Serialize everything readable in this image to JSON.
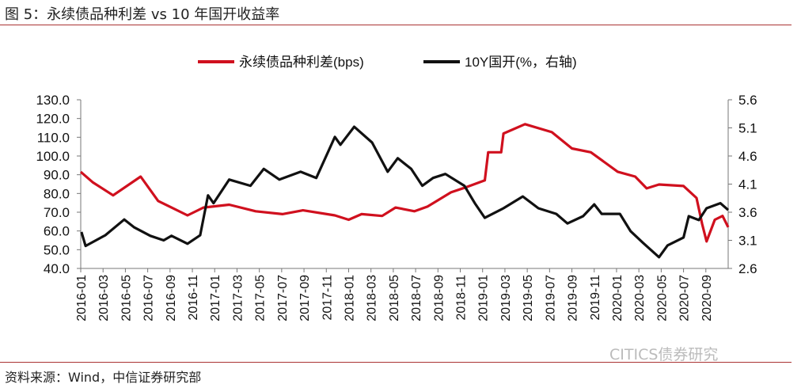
{
  "header": {
    "title": "图 5：永续债品种利差  vs 10 年国开收益率"
  },
  "footer": {
    "source": "资料来源：Wind，中信证券研究部",
    "watermark": "CITICS债券研究"
  },
  "chart_data": {
    "type": "line",
    "title": "图 5：永续债品种利差  vs 10 年国开收益率",
    "legend_position": "top",
    "grid": false,
    "x_range": [
      "2016-01-01",
      "2020-11-01"
    ],
    "x_ticks": [
      "2016-01",
      "2016-03",
      "2016-05",
      "2016-07",
      "2016-09",
      "2016-11",
      "2017-01",
      "2017-03",
      "2017-05",
      "2017-07",
      "2017-09",
      "2017-11",
      "2018-01",
      "2018-03",
      "2018-05",
      "2018-07",
      "2018-09",
      "2018-11",
      "2019-01",
      "2019-03",
      "2019-05",
      "2019-07",
      "2019-09",
      "2019-11",
      "2020-01",
      "2020-03",
      "2020-05",
      "2020-07",
      "2020-09"
    ],
    "y_left": {
      "range": [
        40,
        130
      ],
      "ticks": [
        "40.0",
        "50.0",
        "60.0",
        "70.0",
        "80.0",
        "90.0",
        "100.0",
        "110.0",
        "120.0",
        "130.0"
      ]
    },
    "y_right": {
      "range": [
        2.6,
        5.6
      ],
      "ticks": [
        "2.6",
        "3.1",
        "3.6",
        "4.1",
        "4.6",
        "5.1",
        "5.6"
      ]
    },
    "series": [
      {
        "name": "永续债品种利差(bps)",
        "axis": "left",
        "color": "#d0101e",
        "points": [
          [
            "2016-01-01",
            91.5
          ],
          [
            "2016-02-03",
            86
          ],
          [
            "2016-03-28",
            79
          ],
          [
            "2016-06-12",
            89
          ],
          [
            "2016-07-29",
            76
          ],
          [
            "2016-09-05",
            72.5
          ],
          [
            "2016-10-18",
            68.3
          ],
          [
            "2016-12-01",
            72.5
          ],
          [
            "2017-02-10",
            74
          ],
          [
            "2017-04-21",
            70.5
          ],
          [
            "2017-07-03",
            69
          ],
          [
            "2017-08-28",
            71
          ],
          [
            "2017-11-24",
            68.3
          ],
          [
            "2018-01-01",
            66
          ],
          [
            "2018-02-06",
            69
          ],
          [
            "2018-04-01",
            68
          ],
          [
            "2018-05-07",
            72.5
          ],
          [
            "2018-06-28",
            70.5
          ],
          [
            "2018-08-03",
            73
          ],
          [
            "2018-10-06",
            80.6
          ],
          [
            "2018-11-12",
            83
          ],
          [
            "2019-01-07",
            87
          ],
          [
            "2019-01-16",
            102
          ],
          [
            "2019-02-21",
            102
          ],
          [
            "2019-02-27",
            112
          ],
          [
            "2019-04-25",
            117
          ],
          [
            "2019-07-07",
            112.7
          ],
          [
            "2019-09-01",
            104
          ],
          [
            "2019-10-22",
            102
          ],
          [
            "2020-01-04",
            91.6
          ],
          [
            "2020-02-21",
            89
          ],
          [
            "2020-03-22",
            82.7
          ],
          [
            "2020-04-25",
            84.8
          ],
          [
            "2020-07-01",
            84
          ],
          [
            "2020-08-06",
            77.6
          ],
          [
            "2020-08-21",
            63.7
          ],
          [
            "2020-09-03",
            54.4
          ],
          [
            "2020-09-25",
            66
          ],
          [
            "2020-10-16",
            68
          ],
          [
            "2020-11-01",
            62
          ]
        ]
      },
      {
        "name": "10Y国开(%，右轴)",
        "axis": "right",
        "color": "#111111",
        "points": [
          [
            "2016-01-03",
            3.25
          ],
          [
            "2016-01-14",
            3.0
          ],
          [
            "2016-03-07",
            3.19
          ],
          [
            "2016-04-28",
            3.47
          ],
          [
            "2016-05-25",
            3.33
          ],
          [
            "2016-07-08",
            3.18
          ],
          [
            "2016-08-14",
            3.1
          ],
          [
            "2016-09-05",
            3.18
          ],
          [
            "2016-10-18",
            3.04
          ],
          [
            "2016-11-22",
            3.19
          ],
          [
            "2016-12-13",
            3.9
          ],
          [
            "2016-12-28",
            3.76
          ],
          [
            "2017-02-10",
            4.18
          ],
          [
            "2017-04-07",
            4.07
          ],
          [
            "2017-05-13",
            4.37
          ],
          [
            "2017-06-25",
            4.18
          ],
          [
            "2017-08-22",
            4.32
          ],
          [
            "2017-10-04",
            4.21
          ],
          [
            "2017-11-24",
            4.94
          ],
          [
            "2017-12-09",
            4.8
          ],
          [
            "2018-01-16",
            5.12
          ],
          [
            "2018-03-04",
            4.84
          ],
          [
            "2018-04-16",
            4.32
          ],
          [
            "2018-05-13",
            4.56
          ],
          [
            "2018-06-19",
            4.37
          ],
          [
            "2018-07-19",
            4.07
          ],
          [
            "2018-08-18",
            4.21
          ],
          [
            "2018-09-21",
            4.28
          ],
          [
            "2018-11-12",
            4.07
          ],
          [
            "2018-12-10",
            3.76
          ],
          [
            "2019-01-07",
            3.5
          ],
          [
            "2019-02-27",
            3.67
          ],
          [
            "2019-04-19",
            3.88
          ],
          [
            "2019-06-01",
            3.67
          ],
          [
            "2019-07-19",
            3.57
          ],
          [
            "2019-08-19",
            3.4
          ],
          [
            "2019-10-01",
            3.53
          ],
          [
            "2019-11-01",
            3.74
          ],
          [
            "2019-11-21",
            3.57
          ],
          [
            "2020-01-10",
            3.57
          ],
          [
            "2020-02-09",
            3.26
          ],
          [
            "2020-03-13",
            3.05
          ],
          [
            "2020-04-25",
            2.8
          ],
          [
            "2020-05-18",
            3.01
          ],
          [
            "2020-07-01",
            3.15
          ],
          [
            "2020-07-15",
            3.53
          ],
          [
            "2020-08-12",
            3.46
          ],
          [
            "2020-09-03",
            3.67
          ],
          [
            "2020-10-10",
            3.76
          ],
          [
            "2020-11-01",
            3.64
          ]
        ]
      }
    ]
  }
}
